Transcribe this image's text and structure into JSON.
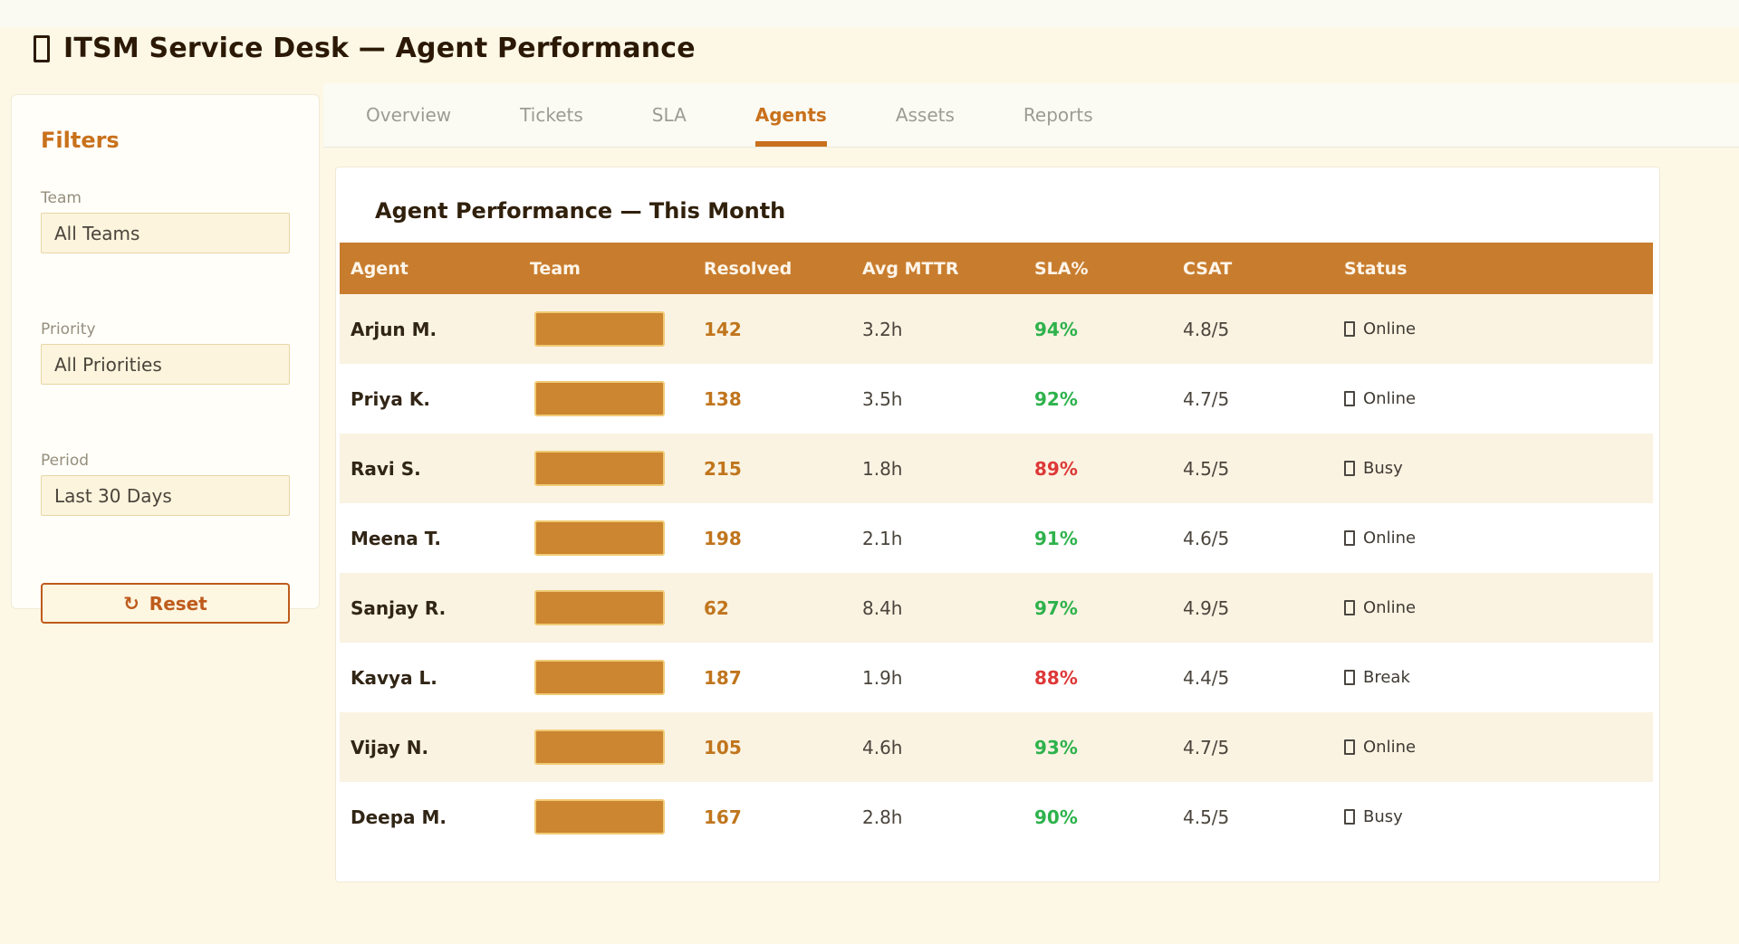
{
  "header": {
    "title": "ITSM Service Desk — Agent Performance"
  },
  "sidebar": {
    "heading": "Filters",
    "fields": [
      {
        "label": "Team",
        "value": "All Teams"
      },
      {
        "label": "Priority",
        "value": "All Priorities"
      },
      {
        "label": "Period",
        "value": "Last 30 Days"
      }
    ],
    "reset": {
      "icon": "↻",
      "label": "Reset"
    }
  },
  "tabs": [
    {
      "label": "Overview",
      "active": false
    },
    {
      "label": "Tickets",
      "active": false
    },
    {
      "label": "SLA",
      "active": false
    },
    {
      "label": "Agents",
      "active": true
    },
    {
      "label": "Assets",
      "active": false
    },
    {
      "label": "Reports",
      "active": false
    }
  ],
  "table": {
    "title": "Agent Performance — This Month",
    "columns": [
      "Agent",
      "Team",
      "Resolved",
      "Avg MTTR",
      "SLA%",
      "CSAT",
      "Status"
    ],
    "rows": [
      {
        "agent": "Arjun M.",
        "resolved": "142",
        "mttr": "3.2h",
        "sla": "94%",
        "sla_ok": true,
        "csat": "4.8/5",
        "status": "Online"
      },
      {
        "agent": "Priya K.",
        "resolved": "138",
        "mttr": "3.5h",
        "sla": "92%",
        "sla_ok": true,
        "csat": "4.7/5",
        "status": "Online"
      },
      {
        "agent": "Ravi S.",
        "resolved": "215",
        "mttr": "1.8h",
        "sla": "89%",
        "sla_ok": false,
        "csat": "4.5/5",
        "status": "Busy"
      },
      {
        "agent": "Meena T.",
        "resolved": "198",
        "mttr": "2.1h",
        "sla": "91%",
        "sla_ok": true,
        "csat": "4.6/5",
        "status": "Online"
      },
      {
        "agent": "Sanjay R.",
        "resolved": "62",
        "mttr": "8.4h",
        "sla": "97%",
        "sla_ok": true,
        "csat": "4.9/5",
        "status": "Online"
      },
      {
        "agent": "Kavya L.",
        "resolved": "187",
        "mttr": "1.9h",
        "sla": "88%",
        "sla_ok": false,
        "csat": "4.4/5",
        "status": "Break"
      },
      {
        "agent": "Vijay N.",
        "resolved": "105",
        "mttr": "4.6h",
        "sla": "93%",
        "sla_ok": true,
        "csat": "4.7/5",
        "status": "Online"
      },
      {
        "agent": "Deepa M.",
        "resolved": "167",
        "mttr": "2.8h",
        "sla": "90%",
        "sla_ok": true,
        "csat": "4.5/5",
        "status": "Busy"
      }
    ]
  },
  "colors": {
    "accent": "#C9711C",
    "table_header": "#C87D2E",
    "badge": "#CC8530",
    "badge_border": "#F0CA74",
    "sla_green": "#2EB24C",
    "sla_red": "#DE3838",
    "row_alt": "#FAF3E2"
  }
}
